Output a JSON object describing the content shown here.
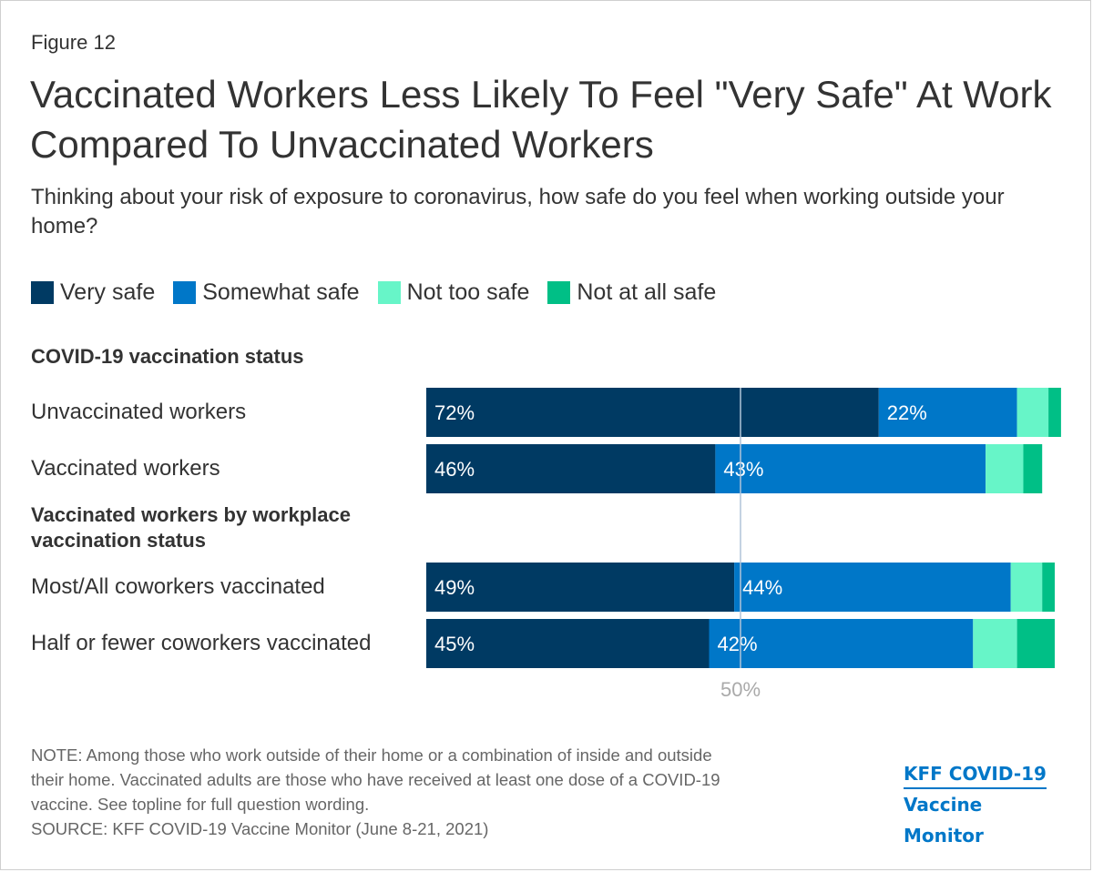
{
  "figure_label": "Figure 12",
  "title": "Vaccinated Workers Less Likely To Feel \"Very Safe\" At Work Compared To Unvaccinated Workers",
  "subtitle": "Thinking about your risk of exposure to coronavirus, how safe do you feel when working outside your home?",
  "colors": {
    "very_safe": "#003a63",
    "somewhat_safe": "#0077c8",
    "not_too_safe": "#67f5c8",
    "not_at_all_safe": "#00bf86",
    "reference_line": "#b0c4d8"
  },
  "chart_data": {
    "type": "bar",
    "orientation": "horizontal-stacked",
    "legend": [
      "Very safe",
      "Somewhat safe",
      "Not too safe",
      "Not at all safe"
    ],
    "groups": [
      {
        "header": "COVID-19 vaccination status",
        "categories": [
          "Unvaccinated workers",
          "Vaccinated workers"
        ]
      },
      {
        "header": "Vaccinated workers by workplace vaccination status",
        "categories": [
          "Most/All coworkers vaccinated",
          "Half or fewer coworkers vaccinated"
        ]
      }
    ],
    "categories": [
      "Unvaccinated workers",
      "Vaccinated workers",
      "Most/All coworkers vaccinated",
      "Half or fewer coworkers vaccinated"
    ],
    "series": [
      {
        "name": "Very safe",
        "values": [
          72,
          46,
          49,
          45
        ]
      },
      {
        "name": "Somewhat safe",
        "values": [
          22,
          43,
          44,
          42
        ]
      },
      {
        "name": "Not too safe",
        "values": [
          5,
          6,
          5,
          7
        ]
      },
      {
        "name": "Not at all safe",
        "values": [
          2,
          3,
          2,
          6
        ]
      }
    ],
    "data_labels": {
      "Very safe": [
        "72%",
        "46%",
        "49%",
        "45%"
      ],
      "Somewhat safe": [
        "22%",
        "43%",
        "44%",
        "42%"
      ]
    },
    "reference_line": {
      "value": 50,
      "label": "50%"
    },
    "xlim": [
      0,
      100
    ]
  },
  "note_lines": [
    "NOTE: Among those who work outside of their home or a combination of inside and outside",
    "their home. Vaccinated adults are those who have received at least one dose of a COVID-19",
    "vaccine. See topline for full question wording."
  ],
  "source": "SOURCE: KFF COVID-19 Vaccine Monitor (June 8-21, 2021)",
  "logo": {
    "line1": "KFF COVID-19",
    "line2": "Vaccine Monitor"
  }
}
